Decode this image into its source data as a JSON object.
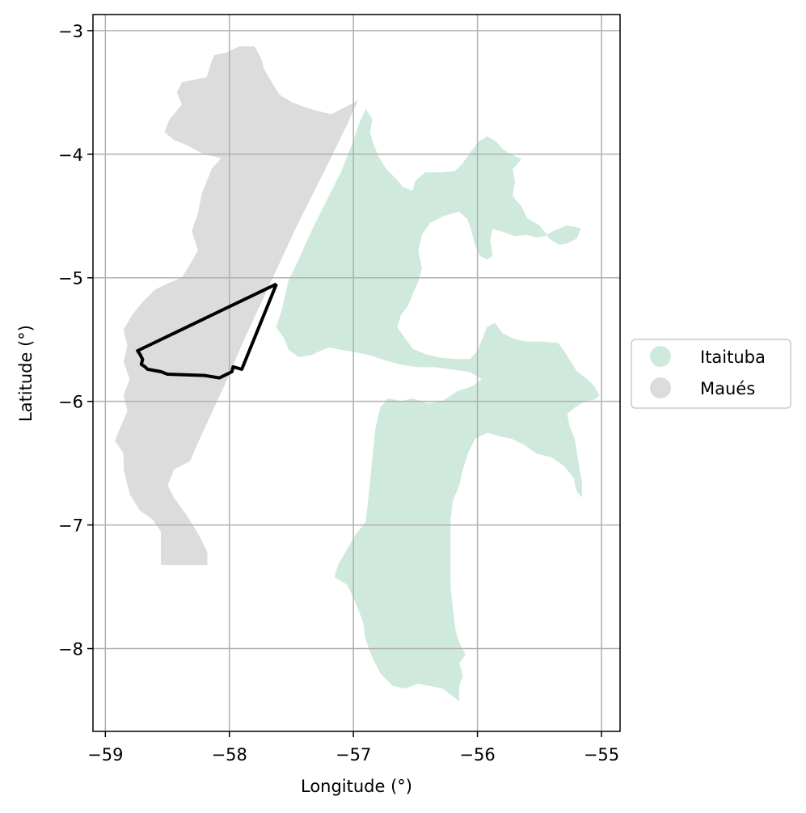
{
  "chart_data": {
    "type": "map",
    "xlabel": "Longitude (°)",
    "ylabel": "Latitude (°)",
    "xlim": [
      -59.1,
      -54.85
    ],
    "ylim": [
      -8.67,
      -2.87
    ],
    "xticks": [
      -59,
      -58,
      -57,
      -56,
      -55
    ],
    "yticks": [
      -3,
      -4,
      -5,
      -6,
      -7,
      -8
    ],
    "xtick_labels": [
      "−59",
      "−58",
      "−57",
      "−56",
      "−55"
    ],
    "ytick_labels": [
      "−3",
      "−4",
      "−5",
      "−6",
      "−7",
      "−8"
    ],
    "grid": true,
    "legend_position": "center-right, outside plot",
    "regions": [
      {
        "name": "Itaituba",
        "color": "#cfeadd",
        "polygon": [
          [
            -56.9,
            -3.64
          ],
          [
            -56.85,
            -3.72
          ],
          [
            -56.87,
            -3.82
          ],
          [
            -56.84,
            -3.92
          ],
          [
            -56.8,
            -4.02
          ],
          [
            -56.74,
            -4.12
          ],
          [
            -56.66,
            -4.2
          ],
          [
            -56.6,
            -4.27
          ],
          [
            -56.52,
            -4.3
          ],
          [
            -56.5,
            -4.22
          ],
          [
            -56.42,
            -4.15
          ],
          [
            -56.3,
            -4.15
          ],
          [
            -56.18,
            -4.14
          ],
          [
            -56.12,
            -4.08
          ],
          [
            -56.05,
            -3.98
          ],
          [
            -55.99,
            -3.9
          ],
          [
            -55.92,
            -3.86
          ],
          [
            -55.85,
            -3.9
          ],
          [
            -55.8,
            -3.96
          ],
          [
            -55.74,
            -4.0
          ],
          [
            -55.65,
            -4.04
          ],
          [
            -55.72,
            -4.12
          ],
          [
            -55.7,
            -4.22
          ],
          [
            -55.72,
            -4.34
          ],
          [
            -55.65,
            -4.42
          ],
          [
            -55.6,
            -4.52
          ],
          [
            -55.5,
            -4.58
          ],
          [
            -55.42,
            -4.68
          ],
          [
            -55.34,
            -4.73
          ],
          [
            -55.28,
            -4.72
          ],
          [
            -55.2,
            -4.68
          ],
          [
            -55.17,
            -4.6
          ],
          [
            -55.28,
            -4.58
          ],
          [
            -55.38,
            -4.62
          ],
          [
            -55.45,
            -4.66
          ],
          [
            -55.53,
            -4.67
          ],
          [
            -55.6,
            -4.65
          ],
          [
            -55.7,
            -4.66
          ],
          [
            -55.78,
            -4.63
          ],
          [
            -55.88,
            -4.6
          ],
          [
            -55.9,
            -4.7
          ],
          [
            -55.88,
            -4.82
          ],
          [
            -55.92,
            -4.85
          ],
          [
            -55.98,
            -4.82
          ],
          [
            -56.02,
            -4.72
          ],
          [
            -56.05,
            -4.6
          ],
          [
            -56.08,
            -4.52
          ],
          [
            -56.15,
            -4.46
          ],
          [
            -56.28,
            -4.5
          ],
          [
            -56.38,
            -4.55
          ],
          [
            -56.45,
            -4.65
          ],
          [
            -56.48,
            -4.78
          ],
          [
            -56.45,
            -4.92
          ],
          [
            -56.48,
            -5.03
          ],
          [
            -56.52,
            -5.12
          ],
          [
            -56.56,
            -5.22
          ],
          [
            -56.62,
            -5.3
          ],
          [
            -56.65,
            -5.4
          ],
          [
            -56.58,
            -5.5
          ],
          [
            -56.52,
            -5.58
          ],
          [
            -56.42,
            -5.62
          ],
          [
            -56.3,
            -5.65
          ],
          [
            -56.18,
            -5.66
          ],
          [
            -56.06,
            -5.66
          ],
          [
            -56.0,
            -5.6
          ],
          [
            -55.96,
            -5.5
          ],
          [
            -55.92,
            -5.4
          ],
          [
            -55.86,
            -5.37
          ],
          [
            -55.8,
            -5.45
          ],
          [
            -55.7,
            -5.5
          ],
          [
            -55.6,
            -5.52
          ],
          [
            -55.48,
            -5.52
          ],
          [
            -55.35,
            -5.53
          ],
          [
            -55.3,
            -5.6
          ],
          [
            -55.25,
            -5.68
          ],
          [
            -55.2,
            -5.76
          ],
          [
            -55.12,
            -5.82
          ],
          [
            -55.06,
            -5.88
          ],
          [
            -55.02,
            -5.95
          ],
          [
            -55.05,
            -5.98
          ],
          [
            -55.14,
            -6.0
          ],
          [
            -55.22,
            -6.05
          ],
          [
            -55.28,
            -6.1
          ],
          [
            -55.26,
            -6.2
          ],
          [
            -55.22,
            -6.3
          ],
          [
            -55.2,
            -6.42
          ],
          [
            -55.18,
            -6.55
          ],
          [
            -55.16,
            -6.65
          ],
          [
            -55.16,
            -6.77
          ],
          [
            -55.2,
            -6.72
          ],
          [
            -55.22,
            -6.62
          ],
          [
            -55.3,
            -6.52
          ],
          [
            -55.4,
            -6.45
          ],
          [
            -55.52,
            -6.42
          ],
          [
            -55.62,
            -6.35
          ],
          [
            -55.72,
            -6.3
          ],
          [
            -55.82,
            -6.28
          ],
          [
            -55.92,
            -6.25
          ],
          [
            -56.02,
            -6.3
          ],
          [
            -56.08,
            -6.42
          ],
          [
            -56.12,
            -6.55
          ],
          [
            -56.15,
            -6.68
          ],
          [
            -56.2,
            -6.8
          ],
          [
            -56.22,
            -6.95
          ],
          [
            -56.22,
            -7.1
          ],
          [
            -56.22,
            -7.3
          ],
          [
            -56.22,
            -7.5
          ],
          [
            -56.2,
            -7.68
          ],
          [
            -56.18,
            -7.85
          ],
          [
            -56.15,
            -7.95
          ],
          [
            -56.1,
            -8.05
          ],
          [
            -56.15,
            -8.12
          ],
          [
            -56.12,
            -8.22
          ],
          [
            -56.15,
            -8.3
          ],
          [
            -56.15,
            -8.42
          ],
          [
            -56.2,
            -8.38
          ],
          [
            -56.28,
            -8.32
          ],
          [
            -56.38,
            -8.3
          ],
          [
            -56.48,
            -8.28
          ],
          [
            -56.58,
            -8.32
          ],
          [
            -56.68,
            -8.3
          ],
          [
            -56.78,
            -8.2
          ],
          [
            -56.85,
            -8.06
          ],
          [
            -56.9,
            -7.92
          ],
          [
            -56.92,
            -7.78
          ],
          [
            -56.96,
            -7.68
          ],
          [
            -57.0,
            -7.58
          ],
          [
            -57.05,
            -7.48
          ],
          [
            -57.15,
            -7.42
          ],
          [
            -57.12,
            -7.32
          ],
          [
            -57.05,
            -7.2
          ],
          [
            -56.98,
            -7.08
          ],
          [
            -56.9,
            -6.98
          ],
          [
            -56.88,
            -6.82
          ],
          [
            -56.86,
            -6.62
          ],
          [
            -56.84,
            -6.42
          ],
          [
            -56.82,
            -6.22
          ],
          [
            -56.78,
            -6.05
          ],
          [
            -56.72,
            -5.98
          ],
          [
            -56.62,
            -6.0
          ],
          [
            -56.52,
            -5.98
          ],
          [
            -56.4,
            -6.02
          ],
          [
            -56.28,
            -6.0
          ],
          [
            -56.16,
            -5.92
          ],
          [
            -56.04,
            -5.88
          ],
          [
            -55.96,
            -5.82
          ],
          [
            -56.06,
            -5.76
          ],
          [
            -56.2,
            -5.74
          ],
          [
            -56.34,
            -5.72
          ],
          [
            -56.48,
            -5.72
          ],
          [
            -56.62,
            -5.7
          ],
          [
            -56.76,
            -5.66
          ],
          [
            -56.88,
            -5.62
          ],
          [
            -56.98,
            -5.6
          ],
          [
            -57.1,
            -5.58
          ],
          [
            -57.2,
            -5.56
          ],
          [
            -57.34,
            -5.62
          ],
          [
            -57.44,
            -5.64
          ],
          [
            -57.52,
            -5.58
          ],
          [
            -57.56,
            -5.48
          ],
          [
            -57.62,
            -5.4
          ],
          [
            -57.58,
            -5.28
          ],
          [
            -57.55,
            -5.15
          ],
          [
            -57.52,
            -5.02
          ],
          [
            -57.45,
            -4.88
          ],
          [
            -57.38,
            -4.72
          ],
          [
            -57.3,
            -4.55
          ],
          [
            -57.2,
            -4.35
          ],
          [
            -57.1,
            -4.15
          ],
          [
            -57.0,
            -3.9
          ],
          [
            -56.95,
            -3.75
          ]
        ]
      },
      {
        "name": "Maués",
        "color": "#dcdcdc",
        "polygon": [
          [
            -57.8,
            -3.13
          ],
          [
            -57.75,
            -3.22
          ],
          [
            -57.72,
            -3.32
          ],
          [
            -57.66,
            -3.42
          ],
          [
            -57.6,
            -3.52
          ],
          [
            -57.5,
            -3.58
          ],
          [
            -57.4,
            -3.62
          ],
          [
            -57.3,
            -3.65
          ],
          [
            -57.18,
            -3.68
          ],
          [
            -57.1,
            -3.64
          ],
          [
            -56.97,
            -3.57
          ],
          [
            -57.05,
            -3.75
          ],
          [
            -57.18,
            -4.02
          ],
          [
            -57.32,
            -4.3
          ],
          [
            -57.46,
            -4.58
          ],
          [
            -57.58,
            -4.84
          ],
          [
            -57.7,
            -5.1
          ],
          [
            -57.82,
            -5.36
          ],
          [
            -57.92,
            -5.58
          ],
          [
            -58.02,
            -5.82
          ],
          [
            -58.14,
            -6.08
          ],
          [
            -58.25,
            -6.32
          ],
          [
            -58.32,
            -6.48
          ],
          [
            -58.45,
            -6.55
          ],
          [
            -58.5,
            -6.68
          ],
          [
            -58.45,
            -6.78
          ],
          [
            -58.35,
            -6.92
          ],
          [
            -58.25,
            -7.08
          ],
          [
            -58.18,
            -7.22
          ],
          [
            -58.18,
            -7.32
          ],
          [
            -58.35,
            -7.32
          ],
          [
            -58.55,
            -7.32
          ],
          [
            -58.55,
            -7.22
          ],
          [
            -58.55,
            -7.05
          ],
          [
            -58.62,
            -6.95
          ],
          [
            -58.72,
            -6.88
          ],
          [
            -58.8,
            -6.75
          ],
          [
            -58.85,
            -6.55
          ],
          [
            -58.85,
            -6.42
          ],
          [
            -58.92,
            -6.32
          ],
          [
            -58.88,
            -6.22
          ],
          [
            -58.82,
            -6.08
          ],
          [
            -58.85,
            -5.95
          ],
          [
            -58.8,
            -5.82
          ],
          [
            -58.85,
            -5.68
          ],
          [
            -58.82,
            -5.55
          ],
          [
            -58.85,
            -5.42
          ],
          [
            -58.78,
            -5.3
          ],
          [
            -58.7,
            -5.2
          ],
          [
            -58.6,
            -5.1
          ],
          [
            -58.5,
            -5.05
          ],
          [
            -58.38,
            -5.0
          ],
          [
            -58.32,
            -4.9
          ],
          [
            -58.25,
            -4.78
          ],
          [
            -58.3,
            -4.62
          ],
          [
            -58.25,
            -4.48
          ],
          [
            -58.22,
            -4.32
          ],
          [
            -58.14,
            -4.12
          ],
          [
            -58.06,
            -4.03
          ],
          [
            -58.2,
            -4.0
          ],
          [
            -58.35,
            -3.92
          ],
          [
            -58.45,
            -3.88
          ],
          [
            -58.52,
            -3.82
          ],
          [
            -58.48,
            -3.72
          ],
          [
            -58.38,
            -3.6
          ],
          [
            -58.42,
            -3.5
          ],
          [
            -58.38,
            -3.42
          ],
          [
            -58.18,
            -3.38
          ],
          [
            -58.15,
            -3.28
          ],
          [
            -58.12,
            -3.2
          ],
          [
            -58.02,
            -3.18
          ],
          [
            -57.92,
            -3.13
          ]
        ]
      }
    ],
    "outline": {
      "color": "#000000",
      "points": [
        [
          -57.62,
          -5.05
        ],
        [
          -58.74,
          -5.59
        ],
        [
          -58.72,
          -5.62
        ],
        [
          -58.7,
          -5.66
        ],
        [
          -58.71,
          -5.7
        ],
        [
          -58.68,
          -5.72
        ],
        [
          -58.66,
          -5.74
        ],
        [
          -58.55,
          -5.76
        ],
        [
          -58.5,
          -5.78
        ],
        [
          -58.2,
          -5.79
        ],
        [
          -58.08,
          -5.81
        ],
        [
          -57.98,
          -5.76
        ],
        [
          -57.97,
          -5.72
        ],
        [
          -57.9,
          -5.74
        ],
        [
          -57.62,
          -5.05
        ]
      ]
    },
    "legend": [
      {
        "label": "Itaituba",
        "color": "#cfeadd"
      },
      {
        "label": "Maués",
        "color": "#dcdcdc"
      }
    ]
  }
}
